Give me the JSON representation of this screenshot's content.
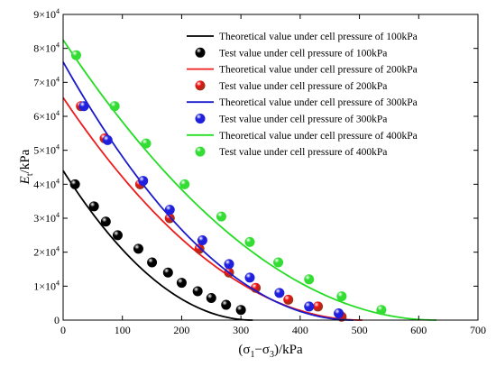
{
  "chart_data": {
    "type": "scatter",
    "xlabel": "(σ1−σ3)/kPa",
    "ylabel": "Et/kPa",
    "xlim": [
      0,
      700
    ],
    "ylim": [
      0,
      90000
    ],
    "xticks": [
      0,
      100,
      200,
      300,
      400,
      500,
      600,
      700
    ],
    "yticks": [
      0,
      10000,
      20000,
      30000,
      40000,
      50000,
      60000,
      70000,
      80000,
      90000
    ],
    "ytick_labels": [
      {
        "mantissa": "0",
        "exp": ""
      },
      {
        "mantissa": "1×10",
        "exp": "4"
      },
      {
        "mantissa": "2×10",
        "exp": "4"
      },
      {
        "mantissa": "3×10",
        "exp": "4"
      },
      {
        "mantissa": "4×10",
        "exp": "4"
      },
      {
        "mantissa": "5×10",
        "exp": "4"
      },
      {
        "mantissa": "6×10",
        "exp": "4"
      },
      {
        "mantissa": "7×10",
        "exp": "4"
      },
      {
        "mantissa": "8×10",
        "exp": "4"
      },
      {
        "mantissa": "9×10",
        "exp": "4"
      }
    ],
    "legend_position": "top-right",
    "grid": false,
    "series": [
      {
        "name": "Theoretical value under cell pressure of 100kPa",
        "kind": "line",
        "color": "#000000",
        "curve": {
          "e0": 44000,
          "xmax": 320
        }
      },
      {
        "name": "Test value under cell pressure of 100kPa",
        "kind": "points",
        "color": "#000000",
        "color2": "#000000",
        "x": [
          20,
          52,
          72,
          92,
          127,
          150,
          177,
          200,
          227,
          250,
          275,
          300
        ],
        "y": [
          40000,
          33500,
          29000,
          25000,
          21000,
          17000,
          14000,
          11000,
          8500,
          6500,
          4500,
          3000
        ]
      },
      {
        "name": "Theoretical value under cell pressure of 200kPa",
        "kind": "line",
        "color": "#ee1c1c",
        "curve": {
          "e0": 65500,
          "xmax": 505
        }
      },
      {
        "name": "Test value under cell pressure of 200kPa",
        "kind": "points",
        "color": "#ee1111",
        "color2": "#8a3a1e",
        "x": [
          30,
          70,
          130,
          180,
          230,
          280,
          325,
          380,
          430,
          470
        ],
        "y": [
          63000,
          53500,
          40000,
          30000,
          21000,
          14000,
          9500,
          6000,
          4000,
          1000
        ]
      },
      {
        "name": "Theoretical value under cell pressure of 300kPa",
        "kind": "line",
        "color": "#1a1acc",
        "curve": {
          "e0": 76000,
          "xmax": 490
        }
      },
      {
        "name": "Test value under cell pressure of 300kPa",
        "kind": "points",
        "color": "#1f1fdd",
        "color2": "#1f1fdd",
        "x": [
          35,
          75,
          135,
          180,
          235,
          280,
          315,
          365,
          415,
          465
        ],
        "y": [
          63000,
          53000,
          41000,
          32500,
          23500,
          16500,
          12500,
          8000,
          4000,
          2000
        ]
      },
      {
        "name": "Theoretical value under cell pressure of 400kPa",
        "kind": "line",
        "color": "#22dd22",
        "curve": {
          "e0": 82500,
          "xmax": 630
        }
      },
      {
        "name": "Test value under cell pressure of 400kPa",
        "kind": "points",
        "color": "#33dd33",
        "color2": "#33dd33",
        "x": [
          22,
          87,
          140,
          205,
          267,
          315,
          363,
          415,
          470,
          537
        ],
        "y": [
          78000,
          63000,
          52000,
          40000,
          30500,
          23000,
          17000,
          12000,
          7000,
          3000
        ]
      }
    ]
  }
}
